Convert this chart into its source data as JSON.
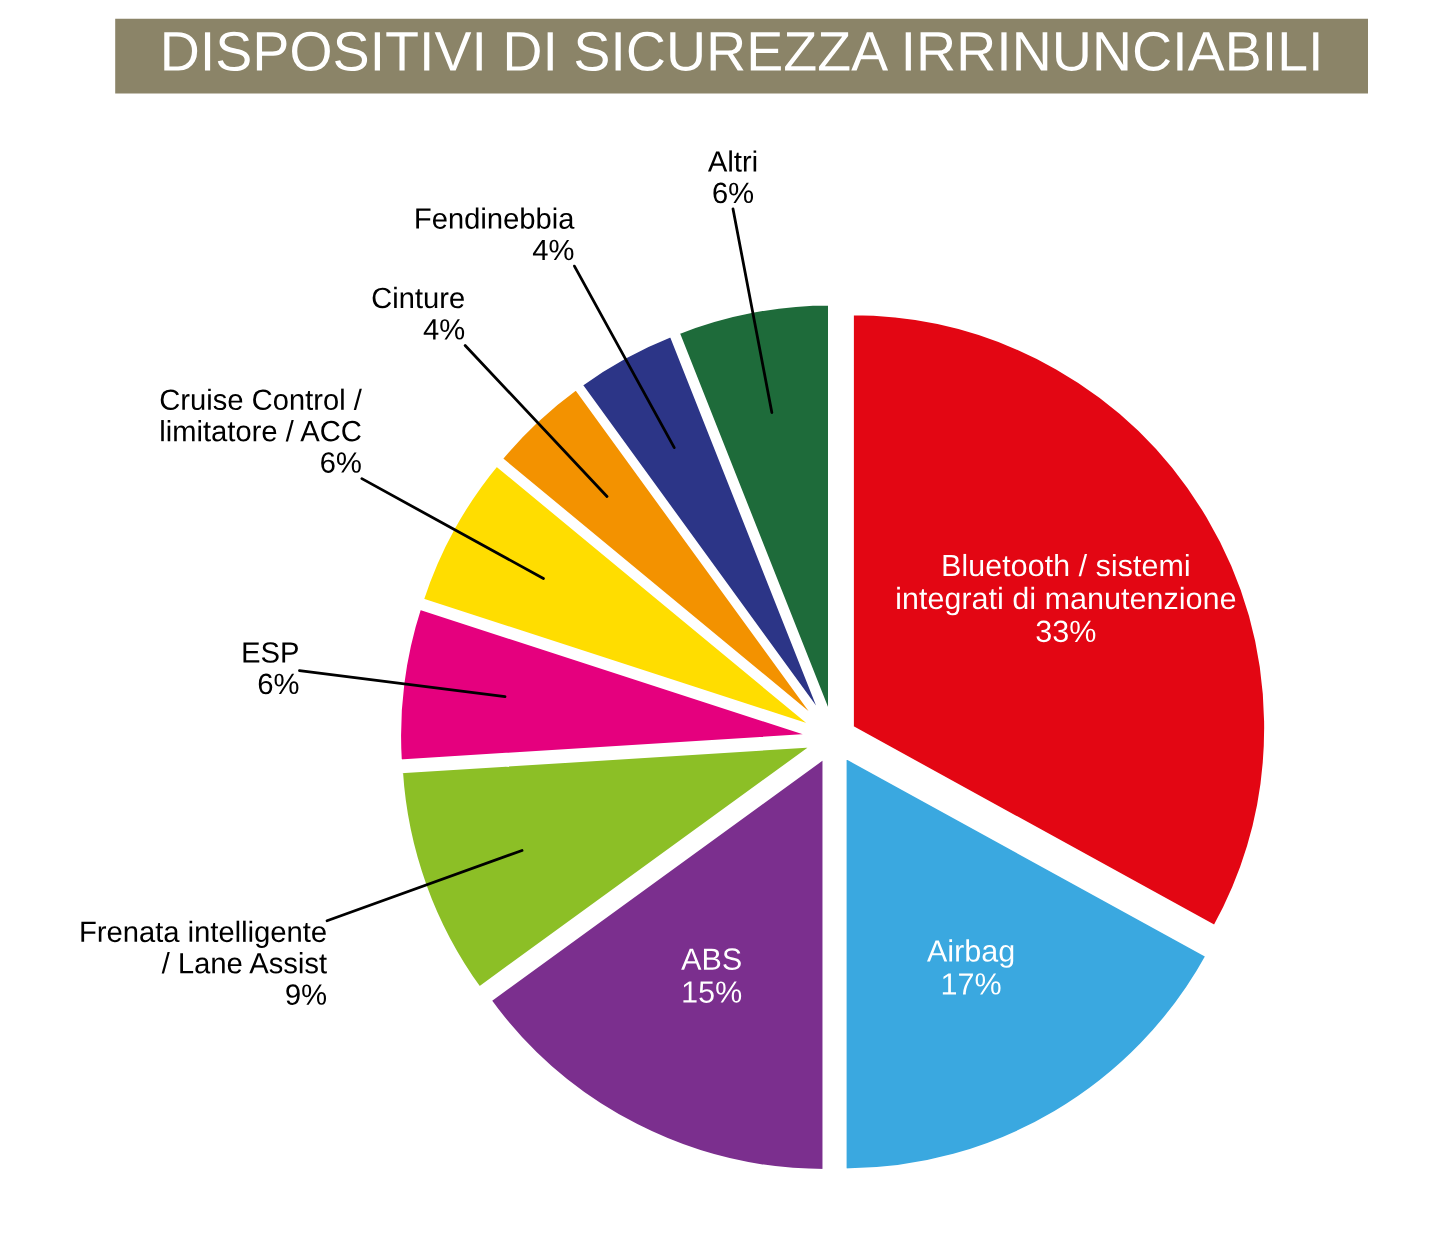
{
  "chart_data": {
    "type": "pie",
    "title": "DISPOSITIVI DI SICUREZZA IRRINUNCIABILI",
    "categories": [
      "Bluetooth / sistemi\nintegrati di manutenzione",
      "Airbag",
      "ABS",
      "Frenata intelligente\n/ Lane Assist",
      "ESP",
      "Cruise Control /\nlimitatore / ACC",
      "Cinture",
      "Fendinebbia",
      "Altri"
    ],
    "values": [
      33,
      17,
      15,
      9,
      6,
      6,
      4,
      4,
      6
    ],
    "colors": [
      "#e30613",
      "#3aa8e0",
      "#7b2f8e",
      "#8cbf26",
      "#e5007e",
      "#ffdd00",
      "#f39200",
      "#2c3587",
      "#1e6b3a"
    ],
    "value_labels": [
      "33%",
      "17%",
      "15%",
      "9%",
      "6%",
      "6%",
      "4%",
      "4%",
      "6%"
    ]
  }
}
